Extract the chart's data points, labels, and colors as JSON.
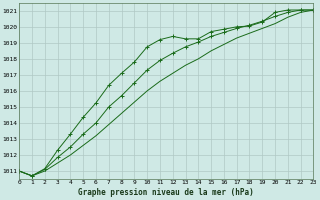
{
  "xlabel": "Graphe pression niveau de la mer (hPa)",
  "background_color": "#cfe9e5",
  "grid_color": "#b0c8c4",
  "line_color": "#1a6b1a",
  "xmin": 0,
  "xmax": 23,
  "ymin": 1010.5,
  "ymax": 1021.5,
  "yticks": [
    1011,
    1012,
    1013,
    1014,
    1015,
    1016,
    1017,
    1018,
    1019,
    1020,
    1021
  ],
  "xticks": [
    0,
    1,
    2,
    3,
    4,
    5,
    6,
    7,
    8,
    9,
    10,
    11,
    12,
    13,
    14,
    15,
    16,
    17,
    18,
    19,
    20,
    21,
    22,
    23
  ],
  "line1_x": [
    0,
    1,
    2,
    3,
    4,
    5,
    6,
    7,
    8,
    9,
    10,
    11,
    12,
    13,
    14,
    15,
    16,
    17,
    18,
    19,
    20,
    21,
    22,
    23
  ],
  "line1_y": [
    1011.0,
    1010.7,
    1011.15,
    1012.3,
    1013.3,
    1014.35,
    1015.25,
    1016.35,
    1017.1,
    1017.8,
    1018.75,
    1019.2,
    1019.4,
    1019.25,
    1019.25,
    1019.7,
    1019.85,
    1020.0,
    1020.05,
    1020.3,
    1020.9,
    1021.05,
    1021.05,
    1021.05
  ],
  "line2_x": [
    0,
    1,
    2,
    3,
    4,
    5,
    6,
    7,
    8,
    9,
    10,
    11,
    12,
    13,
    14,
    15,
    16,
    17,
    18,
    19,
    20,
    21,
    22,
    23
  ],
  "line2_y": [
    1011.0,
    1010.7,
    1011.0,
    1011.5,
    1012.0,
    1012.6,
    1013.2,
    1013.9,
    1014.6,
    1015.3,
    1016.0,
    1016.6,
    1017.1,
    1017.6,
    1018.0,
    1018.5,
    1018.9,
    1019.3,
    1019.6,
    1019.9,
    1020.2,
    1020.6,
    1020.9,
    1021.05
  ],
  "line3_x": [
    0,
    1,
    2,
    3,
    4,
    5,
    6,
    7,
    8,
    9,
    10,
    11,
    12,
    13,
    14,
    15,
    16,
    17,
    18,
    19,
    20,
    21,
    22,
    23
  ],
  "line3_y": [
    1011.0,
    1010.7,
    1011.1,
    1011.85,
    1012.5,
    1013.3,
    1014.0,
    1015.0,
    1015.7,
    1016.5,
    1017.3,
    1017.9,
    1018.35,
    1018.75,
    1019.05,
    1019.4,
    1019.65,
    1019.9,
    1020.1,
    1020.35,
    1020.65,
    1020.9,
    1021.05,
    1021.05
  ]
}
